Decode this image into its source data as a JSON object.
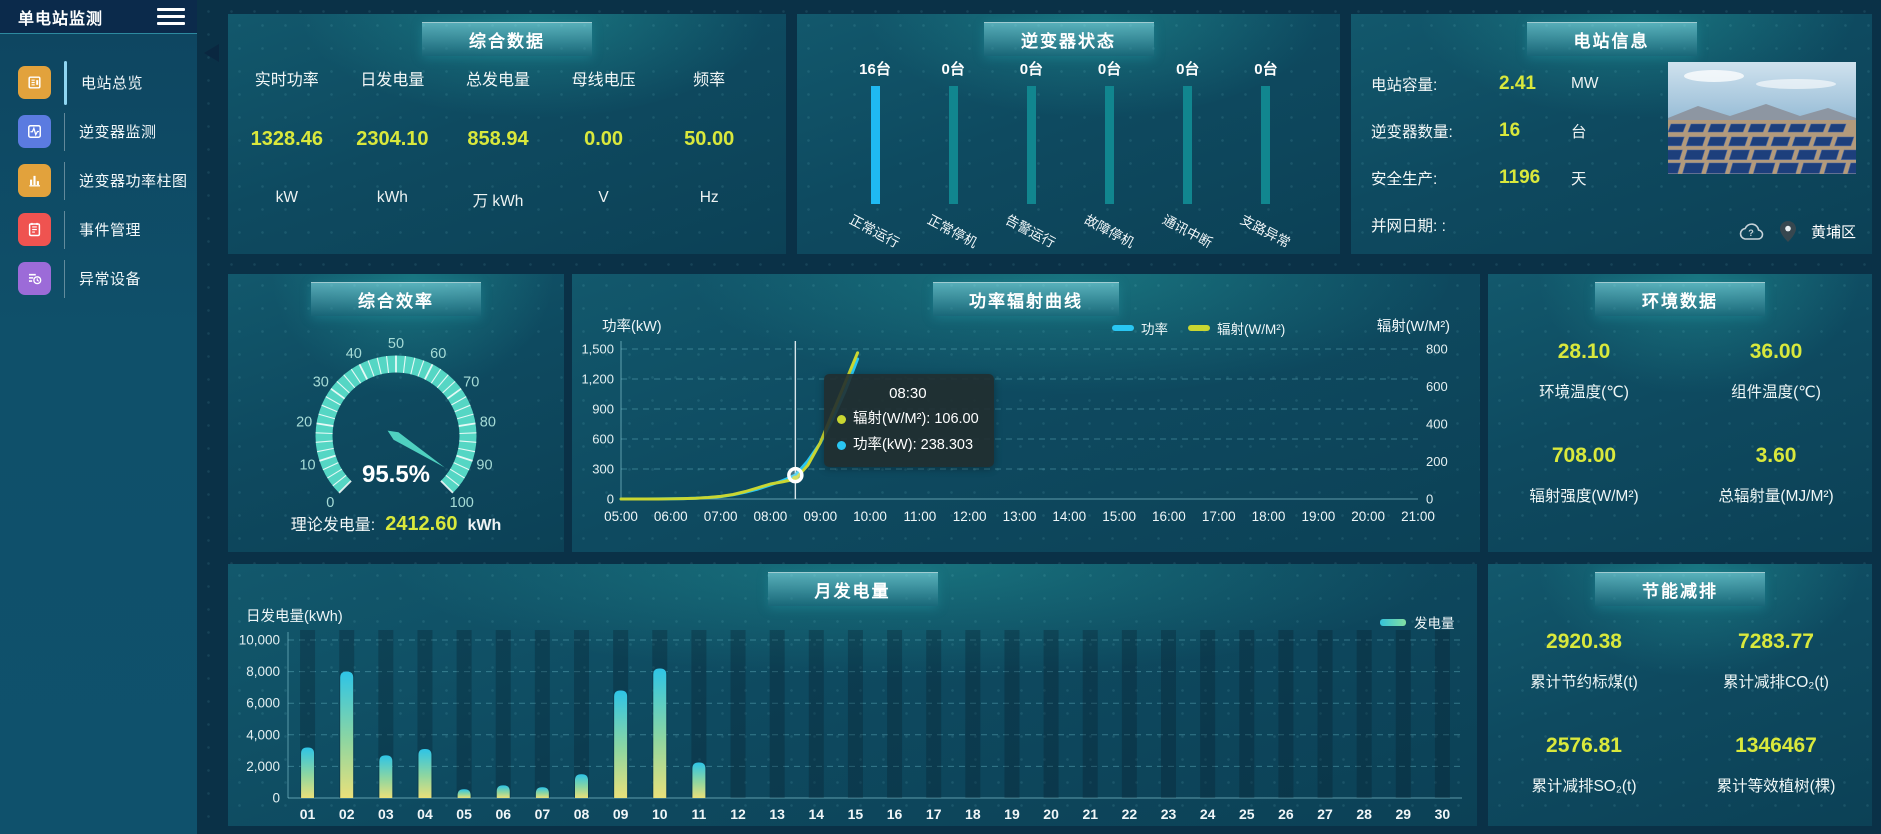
{
  "app": {
    "title": "单电站监测"
  },
  "colors": {
    "value_yellow": "#d9e83c",
    "power_series": "#29c6f2",
    "radiation_series": "#c9d631",
    "status_bar_active": "#1fb9f2",
    "status_bar_idle": "#11868f",
    "gauge_arc": "#55d6c4"
  },
  "sidebar": {
    "items": [
      {
        "key": "overview",
        "label": "电站总览",
        "icon": "news-icon",
        "color": "#e2a23c",
        "active": true
      },
      {
        "key": "inverter-monitor",
        "label": "逆变器监测",
        "icon": "pulse-icon",
        "color": "#5b7be0",
        "active": false
      },
      {
        "key": "inverter-power-bars",
        "label": "逆变器功率柱图",
        "icon": "bar-chart-icon",
        "color": "#e2a23c",
        "active": false
      },
      {
        "key": "event-management",
        "label": "事件管理",
        "icon": "notebook-icon",
        "color": "#ef5350",
        "active": false
      },
      {
        "key": "abnormal-devices",
        "label": "异常设备",
        "icon": "device-list-icon",
        "color": "#9c6bd8",
        "active": false
      }
    ]
  },
  "panels": {
    "summary": {
      "title": "综合数据",
      "metrics": [
        {
          "label": "实时功率",
          "value": "1328.46",
          "unit": "kW"
        },
        {
          "label": "日发电量",
          "value": "2304.10",
          "unit": "kWh"
        },
        {
          "label": "总发电量",
          "value": "858.94",
          "unit": "万 kWh"
        },
        {
          "label": "母线电压",
          "value": "0.00",
          "unit": "V"
        },
        {
          "label": "频率",
          "value": "50.00",
          "unit": "Hz"
        }
      ]
    },
    "inverter_status": {
      "title": "逆变器状态",
      "bars": [
        {
          "count": "16台",
          "label": "正常运行",
          "highlight": true
        },
        {
          "count": "0台",
          "label": "正常停机",
          "highlight": false
        },
        {
          "count": "0台",
          "label": "告警运行",
          "highlight": false
        },
        {
          "count": "0台",
          "label": "故障停机",
          "highlight": false
        },
        {
          "count": "0台",
          "label": "通讯中断",
          "highlight": false
        },
        {
          "count": "0台",
          "label": "支路异常",
          "highlight": false
        }
      ]
    },
    "station_info": {
      "title": "电站信息",
      "rows": [
        {
          "label": "电站容量:",
          "value": "2.41",
          "unit": "MW"
        },
        {
          "label": "逆变器数量:",
          "value": "16",
          "unit": "台"
        },
        {
          "label": "安全生产:",
          "value": "1196",
          "unit": "天"
        },
        {
          "label": "并网日期: :",
          "value": "",
          "unit": ""
        }
      ],
      "location": "黄埔区"
    },
    "efficiency": {
      "title": "综合效率",
      "theory": {
        "label": "理论发电量:",
        "value": "2412.60",
        "unit": "kWh"
      }
    },
    "power_curve": {
      "title": "功率辐射曲线"
    },
    "environment": {
      "title": "环境数据",
      "metrics": [
        {
          "value": "28.10",
          "label": "环境温度(℃)"
        },
        {
          "value": "36.00",
          "label": "组件温度(℃)"
        },
        {
          "value": "708.00",
          "label": "辐射强度(W/M²)"
        },
        {
          "value": "3.60",
          "label": "总辐射量(MJ/M²)"
        }
      ]
    },
    "monthly": {
      "title": "月发电量"
    },
    "saving": {
      "title": "节能减排",
      "metrics": [
        {
          "value": "2920.38",
          "label": "累计节约标煤(t)"
        },
        {
          "value": "7283.77",
          "label": "累计减排CO₂(t)"
        },
        {
          "value": "2576.81",
          "label": "累计减排SO₂(t)"
        },
        {
          "value": "1346467",
          "label": "累计等效植树(棵)"
        }
      ]
    }
  },
  "chart_data": [
    {
      "id": "efficiency_gauge",
      "type": "gauge",
      "title": "综合效率",
      "min": 0,
      "max": 100,
      "value": 95.5,
      "value_label": "95.5%",
      "tick_labels": [
        0,
        10,
        20,
        30,
        40,
        50,
        60,
        70,
        80,
        90,
        100
      ]
    },
    {
      "id": "power_radiation",
      "type": "line",
      "title": "功率辐射曲线",
      "x_hours": [
        5,
        6,
        7,
        8,
        9,
        10,
        11,
        12,
        13,
        14,
        15,
        16,
        17,
        18,
        19,
        20,
        21
      ],
      "x_tick_labels": [
        "05:00",
        "06:00",
        "07:00",
        "08:00",
        "09:00",
        "10:00",
        "11:00",
        "12:00",
        "13:00",
        "14:00",
        "15:00",
        "16:00",
        "17:00",
        "18:00",
        "19:00",
        "20:00",
        "21:00"
      ],
      "left_axis": {
        "label": "功率(kW)",
        "min": 0,
        "max": 1500,
        "ticks": [
          0,
          300,
          600,
          900,
          1200,
          1500
        ]
      },
      "right_axis": {
        "label": "辐射(W/M²)",
        "min": 0,
        "max": 800,
        "ticks": [
          0,
          200,
          400,
          600,
          800
        ]
      },
      "series": [
        {
          "name": "功率",
          "axis": "left",
          "color": "#29c6f2",
          "x": [
            5,
            5.25,
            5.5,
            5.75,
            6,
            6.25,
            6.5,
            6.75,
            7,
            7.25,
            7.5,
            7.75,
            8,
            8.25,
            8.5,
            8.75,
            9,
            9.25,
            9.5,
            9.75
          ],
          "values": [
            0,
            0,
            0,
            1,
            2,
            4,
            8,
            14,
            24,
            42,
            68,
            100,
            140,
            185,
            238.3,
            380,
            560,
            800,
            1080,
            1400
          ]
        },
        {
          "name": "辐射(W/M²)",
          "axis": "right",
          "color": "#c9d631",
          "x": [
            5,
            5.25,
            5.5,
            5.75,
            6,
            6.25,
            6.5,
            6.75,
            7,
            7.25,
            7.5,
            7.75,
            8,
            8.25,
            8.5,
            8.75,
            9,
            9.25,
            9.5,
            9.75
          ],
          "values": [
            0,
            0,
            0,
            0,
            1,
            2,
            4,
            8,
            14,
            24,
            40,
            60,
            80,
            92,
            106,
            180,
            300,
            460,
            620,
            780
          ]
        }
      ],
      "hover": {
        "x": 8.5,
        "title": "08:30",
        "rows": [
          {
            "color": "#c9d631",
            "text": "辐射(W/M²): 106.00"
          },
          {
            "color": "#29c6f2",
            "text": "功率(kW): 238.303"
          }
        ]
      }
    },
    {
      "id": "monthly_energy",
      "type": "bar",
      "title": "月发电量",
      "ylabel": "日发电量(kWh)",
      "legend": "发电量",
      "categories": [
        "01",
        "02",
        "03",
        "04",
        "05",
        "06",
        "07",
        "08",
        "09",
        "10",
        "11",
        "12",
        "13",
        "14",
        "15",
        "16",
        "17",
        "18",
        "19",
        "20",
        "21",
        "22",
        "23",
        "24",
        "25",
        "26",
        "27",
        "28",
        "29",
        "30"
      ],
      "values": [
        3200,
        8000,
        2700,
        3100,
        550,
        800,
        680,
        1500,
        6800,
        8200,
        2250,
        0,
        0,
        0,
        0,
        0,
        0,
        0,
        0,
        0,
        0,
        0,
        0,
        0,
        0,
        0,
        0,
        0,
        0,
        0
      ],
      "ylim": [
        0,
        10000
      ],
      "yticks": [
        0,
        2000,
        4000,
        6000,
        8000,
        10000
      ]
    }
  ]
}
